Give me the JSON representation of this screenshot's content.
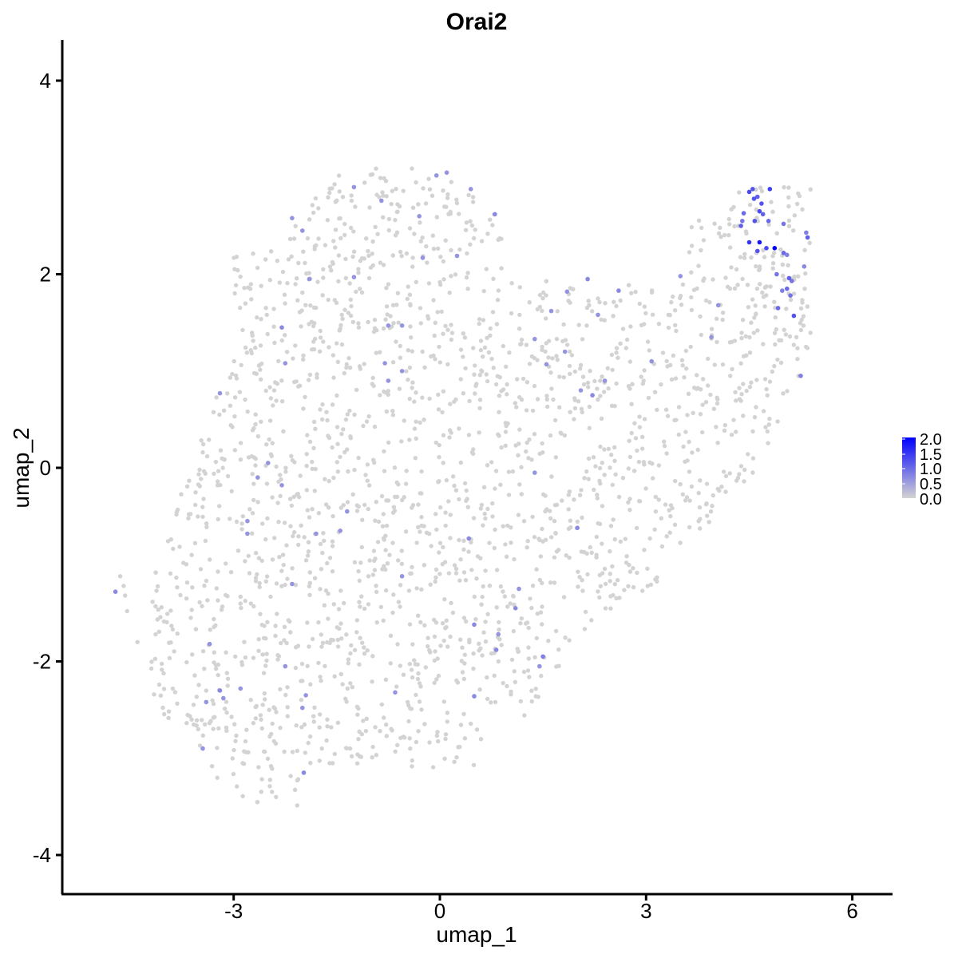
{
  "chart_data": {
    "type": "scatter",
    "title": "Orai2",
    "xlabel": "umap_1",
    "ylabel": "umap_2",
    "xlim": [
      -5.4,
      6.6
    ],
    "ylim": [
      -4.4,
      4.4
    ],
    "x_ticks": [
      -3,
      0,
      3,
      6
    ],
    "x_tick_labels": [
      "-3",
      "0",
      "3",
      "6"
    ],
    "y_ticks": [
      -4,
      -2,
      0,
      2,
      4
    ],
    "y_tick_labels": [
      "-4",
      "-2",
      "0",
      "2",
      "4"
    ],
    "grid": false,
    "legend": {
      "placement": "right",
      "type": "color-gradient",
      "labels": [
        "2.0",
        "1.5",
        "1.0",
        "0.5",
        "0.0"
      ],
      "range": [
        0,
        2
      ],
      "low_color": "#d3d3d3",
      "high_color": "#0000ff"
    },
    "expressed_points": [
      {
        "x": 4.55,
        "y": 2.88,
        "v": 1.2
      },
      {
        "x": 4.5,
        "y": 2.85,
        "v": 1.3
      },
      {
        "x": 4.62,
        "y": 2.8,
        "v": 1.1
      },
      {
        "x": 4.57,
        "y": 2.78,
        "v": 1.2
      },
      {
        "x": 4.8,
        "y": 2.88,
        "v": 1.4
      },
      {
        "x": 4.68,
        "y": 2.73,
        "v": 1.2
      },
      {
        "x": 4.65,
        "y": 2.65,
        "v": 1.3
      },
      {
        "x": 4.7,
        "y": 2.62,
        "v": 1.1
      },
      {
        "x": 4.42,
        "y": 2.63,
        "v": 1.0
      },
      {
        "x": 4.58,
        "y": 2.55,
        "v": 1.2
      },
      {
        "x": 4.4,
        "y": 2.55,
        "v": 0.9
      },
      {
        "x": 4.78,
        "y": 2.55,
        "v": 1.0
      },
      {
        "x": 5.0,
        "y": 2.52,
        "v": 0.9
      },
      {
        "x": 4.38,
        "y": 2.5,
        "v": 1.1
      },
      {
        "x": 4.5,
        "y": 2.33,
        "v": 1.5
      },
      {
        "x": 4.65,
        "y": 2.33,
        "v": 1.8
      },
      {
        "x": 4.87,
        "y": 2.27,
        "v": 2.0
      },
      {
        "x": 4.75,
        "y": 2.27,
        "v": 1.3
      },
      {
        "x": 4.62,
        "y": 2.24,
        "v": 1.2
      },
      {
        "x": 5.0,
        "y": 2.22,
        "v": 1.0
      },
      {
        "x": 5.05,
        "y": 2.2,
        "v": 0.8
      },
      {
        "x": 5.33,
        "y": 2.43,
        "v": 0.8
      },
      {
        "x": 5.35,
        "y": 2.38,
        "v": 1.1
      },
      {
        "x": 5.3,
        "y": 2.08,
        "v": 0.7
      },
      {
        "x": 4.9,
        "y": 2.0,
        "v": 0.9
      },
      {
        "x": 5.08,
        "y": 1.96,
        "v": 1.1
      },
      {
        "x": 5.12,
        "y": 1.93,
        "v": 0.9
      },
      {
        "x": 5.05,
        "y": 1.85,
        "v": 1.0
      },
      {
        "x": 4.98,
        "y": 1.83,
        "v": 0.8
      },
      {
        "x": 5.1,
        "y": 1.78,
        "v": 0.9
      },
      {
        "x": 4.92,
        "y": 1.65,
        "v": 1.0
      },
      {
        "x": 5.15,
        "y": 1.57,
        "v": 1.2
      },
      {
        "x": 5.25,
        "y": 0.95,
        "v": 0.8
      },
      {
        "x": 4.05,
        "y": 1.68,
        "v": 0.6
      },
      {
        "x": 3.95,
        "y": 1.35,
        "v": 0.6
      },
      {
        "x": 3.5,
        "y": 1.98,
        "v": 0.6
      },
      {
        "x": 3.08,
        "y": 1.1,
        "v": 0.6
      },
      {
        "x": 2.6,
        "y": 1.83,
        "v": 0.7
      },
      {
        "x": 2.15,
        "y": 1.95,
        "v": 0.7
      },
      {
        "x": 1.85,
        "y": 1.82,
        "v": 0.6
      },
      {
        "x": 1.62,
        "y": 1.62,
        "v": 0.6
      },
      {
        "x": 1.82,
        "y": 1.2,
        "v": 0.6
      },
      {
        "x": 2.3,
        "y": 1.58,
        "v": 0.6
      },
      {
        "x": 2.4,
        "y": 0.9,
        "v": 0.6
      },
      {
        "x": 2.05,
        "y": 0.8,
        "v": 0.6
      },
      {
        "x": 2.22,
        "y": 0.75,
        "v": 0.7
      },
      {
        "x": 1.55,
        "y": 1.07,
        "v": 0.6
      },
      {
        "x": 1.38,
        "y": 1.33,
        "v": 0.6
      },
      {
        "x": 1.38,
        "y": -0.05,
        "v": 0.6
      },
      {
        "x": 2.0,
        "y": -0.62,
        "v": 0.7
      },
      {
        "x": 1.15,
        "y": -1.25,
        "v": 0.6
      },
      {
        "x": 1.1,
        "y": -1.45,
        "v": 0.7
      },
      {
        "x": 1.5,
        "y": -1.95,
        "v": 0.8
      },
      {
        "x": 1.45,
        "y": -2.05,
        "v": 0.6
      },
      {
        "x": 0.85,
        "y": -1.72,
        "v": 0.6
      },
      {
        "x": 0.82,
        "y": -1.88,
        "v": 0.7
      },
      {
        "x": 0.5,
        "y": -1.62,
        "v": 0.7
      },
      {
        "x": 0.42,
        "y": -0.73,
        "v": 0.7
      },
      {
        "x": 0.5,
        "y": -2.36,
        "v": 0.7
      },
      {
        "x": -0.55,
        "y": -1.12,
        "v": 0.6
      },
      {
        "x": -0.65,
        "y": -2.32,
        "v": 0.6
      },
      {
        "x": 0.1,
        "y": 3.05,
        "v": 0.6
      },
      {
        "x": -0.05,
        "y": 3.02,
        "v": 0.6
      },
      {
        "x": 0.45,
        "y": 2.88,
        "v": 0.6
      },
      {
        "x": 0.8,
        "y": 2.62,
        "v": 0.7
      },
      {
        "x": 0.25,
        "y": 2.19,
        "v": 0.6
      },
      {
        "x": -0.25,
        "y": 2.17,
        "v": 0.6
      },
      {
        "x": -0.3,
        "y": 2.6,
        "v": 0.6
      },
      {
        "x": -0.85,
        "y": 2.76,
        "v": 0.6
      },
      {
        "x": -1.25,
        "y": 2.9,
        "v": 0.6
      },
      {
        "x": -1.25,
        "y": 1.97,
        "v": 0.6
      },
      {
        "x": -0.75,
        "y": 1.47,
        "v": 0.6
      },
      {
        "x": -0.55,
        "y": 1.47,
        "v": 0.6
      },
      {
        "x": -0.8,
        "y": 1.08,
        "v": 0.6
      },
      {
        "x": -0.55,
        "y": 1.0,
        "v": 0.6
      },
      {
        "x": -0.75,
        "y": 0.9,
        "v": 0.6
      },
      {
        "x": -2.15,
        "y": 2.58,
        "v": 0.6
      },
      {
        "x": -2.0,
        "y": 2.45,
        "v": 0.6
      },
      {
        "x": -1.9,
        "y": 1.95,
        "v": 0.6
      },
      {
        "x": -2.3,
        "y": 1.45,
        "v": 0.7
      },
      {
        "x": -2.25,
        "y": 1.08,
        "v": 0.6
      },
      {
        "x": -3.2,
        "y": 0.77,
        "v": 0.6
      },
      {
        "x": -2.5,
        "y": 0.05,
        "v": 0.6
      },
      {
        "x": -2.65,
        "y": -0.1,
        "v": 0.6
      },
      {
        "x": -2.3,
        "y": -0.18,
        "v": 0.6
      },
      {
        "x": -2.8,
        "y": -0.55,
        "v": 0.6
      },
      {
        "x": -2.8,
        "y": -0.68,
        "v": 0.6
      },
      {
        "x": -1.8,
        "y": -0.68,
        "v": 0.6
      },
      {
        "x": -1.45,
        "y": -0.65,
        "v": 0.6
      },
      {
        "x": -1.35,
        "y": -0.45,
        "v": 0.6
      },
      {
        "x": -2.15,
        "y": -1.2,
        "v": 0.6
      },
      {
        "x": -3.35,
        "y": -1.82,
        "v": 0.6
      },
      {
        "x": -2.25,
        "y": -2.05,
        "v": 0.6
      },
      {
        "x": -2.9,
        "y": -2.28,
        "v": 0.6
      },
      {
        "x": -3.2,
        "y": -2.3,
        "v": 0.7
      },
      {
        "x": -3.15,
        "y": -2.38,
        "v": 0.6
      },
      {
        "x": -3.4,
        "y": -2.42,
        "v": 0.6
      },
      {
        "x": -1.95,
        "y": -2.35,
        "v": 0.6
      },
      {
        "x": -2.0,
        "y": -2.48,
        "v": 0.6
      },
      {
        "x": -3.45,
        "y": -2.9,
        "v": 0.6
      },
      {
        "x": -1.98,
        "y": -3.15,
        "v": 0.7
      },
      {
        "x": -4.72,
        "y": -1.28,
        "v": 0.7
      }
    ]
  }
}
